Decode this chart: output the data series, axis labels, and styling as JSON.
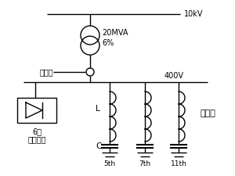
{
  "bg_color": "#ffffff",
  "line_color": "#000000",
  "label_10kV": "10kV",
  "label_20MVA": "20MVA",
  "label_6pct": "6%",
  "label_400V": "400V",
  "label_measure": "测量点",
  "label_L": "L",
  "label_C": "C",
  "label_5th": "5th",
  "label_7th": "7th",
  "label_11th": "11th",
  "label_filter": "滤波器",
  "label_drive1": "6相",
  "label_drive2": "交流拖动",
  "figsize": [
    3.0,
    2.25
  ],
  "dpi": 100
}
